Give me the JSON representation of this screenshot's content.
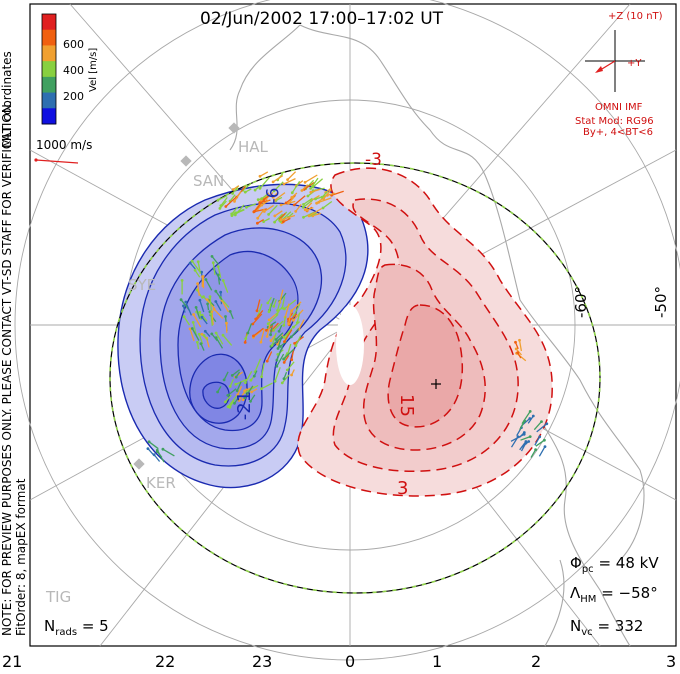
{
  "header": {
    "title": "02/Jun/2002 17:00–17:02 UT"
  },
  "colorbar": {
    "label": "Vel [m/s]",
    "ticks": [
      "600",
      "400",
      "200"
    ],
    "colors": [
      "#e02020",
      "#f06010",
      "#f0a030",
      "#88d040",
      "#40a060",
      "#2e6fb0",
      "#1010e0"
    ]
  },
  "side_text": {
    "coords": "MLT coordinates",
    "note": "NOTE: FOR PREVIEW PURPOSES ONLY. PLEASE CONTACT VT-SD STAFF FOR VERIFICATION.",
    "fit": "FitOrder: 8, mapEX format"
  },
  "scale_vector": {
    "label": "1000 m/s"
  },
  "imf": {
    "bz_label": "+Z (10 nT)",
    "by_label": "+Y",
    "source": "OMNI IMF",
    "model": "Stat Mod: RG96",
    "condition": "By+, 4<BT<6"
  },
  "stations": [
    "HAL",
    "SAN",
    "SYE",
    "KER",
    "TIG"
  ],
  "lat_labels": [
    "-60°",
    "-50°"
  ],
  "contours": {
    "neg_labels": [
      "-6",
      "-21"
    ],
    "pos_labels": [
      "-3",
      "15",
      "3"
    ]
  },
  "stats": {
    "phi_sym": "Φ",
    "phi_sub": "pc",
    "phi_val": "= 48 kV",
    "lam_sym": "Λ",
    "lam_sub": "HM",
    "lam_val": "= −58°",
    "nvc_sym": "N",
    "nvc_sub": "vc",
    "nvc_val": "= 332",
    "nrads_sym": "N",
    "nrads_sub": "rads",
    "nrads_val": "= 5"
  },
  "mlt_ticks": [
    "21",
    "22",
    "23",
    "0",
    "1",
    "2",
    "3"
  ]
}
